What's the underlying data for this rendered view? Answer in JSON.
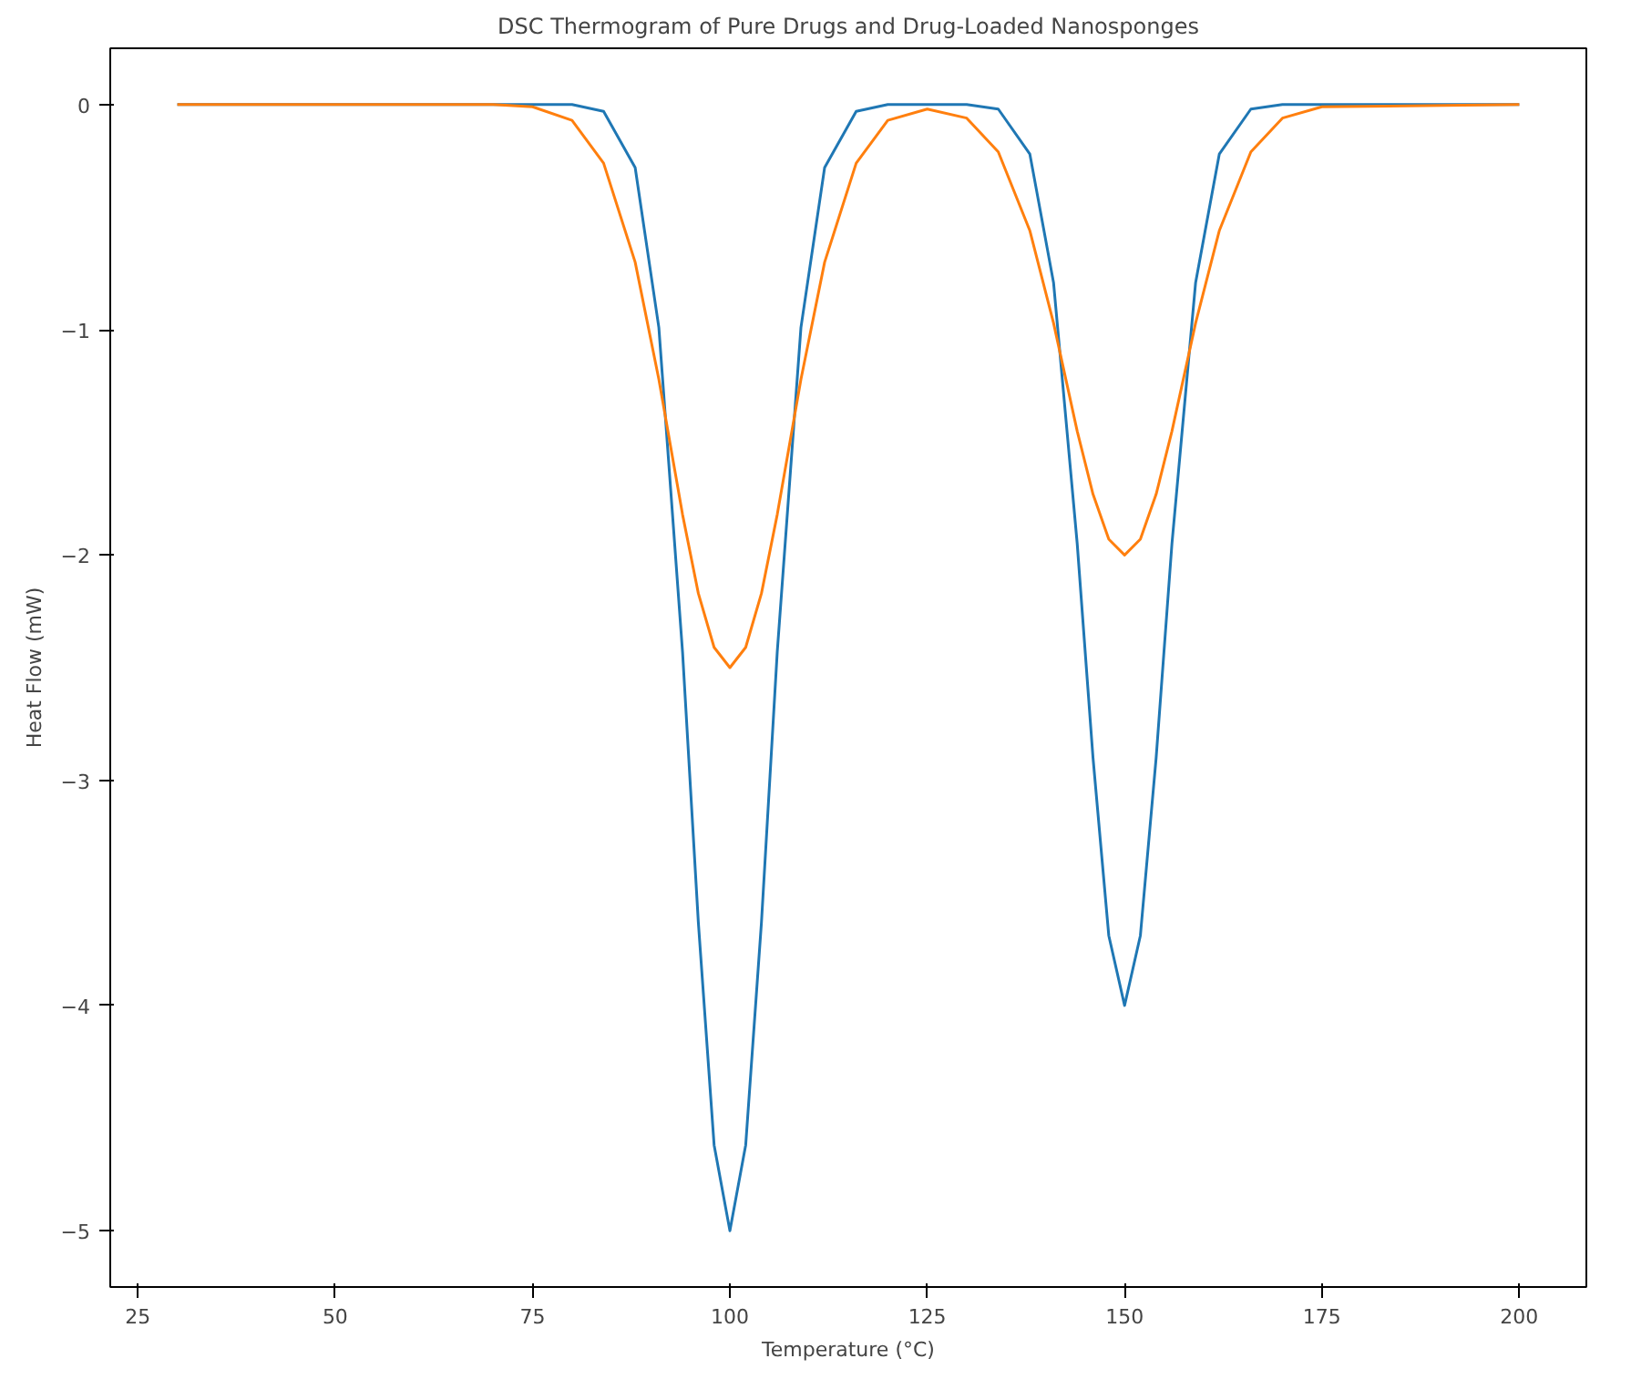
{
  "chart_data": {
    "type": "line",
    "title": "DSC Thermogram of Pure Drugs and Drug-Loaded Nanosponges",
    "xlabel": "Temperature (°C)",
    "ylabel": "Heat Flow (mW)",
    "x": [
      30,
      70,
      75,
      80,
      84,
      88,
      91,
      94,
      96,
      98,
      100,
      102,
      104,
      106,
      109,
      112,
      116,
      120,
      125,
      130,
      134,
      138,
      141,
      144,
      146,
      148,
      150,
      152,
      154,
      156,
      159,
      162,
      166,
      170,
      175,
      200
    ],
    "series": [
      {
        "color": "#1f77b4",
        "values": [
          0,
          0,
          0,
          0,
          -0.03,
          -0.28,
          -0.99,
          -2.43,
          -3.63,
          -4.62,
          -5,
          -4.62,
          -3.63,
          -2.43,
          -0.99,
          -0.28,
          -0.03,
          0,
          0,
          0,
          -0.02,
          -0.22,
          -0.79,
          -1.95,
          -2.9,
          -3.69,
          -4,
          -3.69,
          -2.9,
          -1.95,
          -0.79,
          -0.22,
          -0.02,
          0,
          0,
          0
        ]
      },
      {
        "color": "#ff7f0e",
        "values": [
          0,
          0,
          -0.01,
          -0.07,
          -0.26,
          -0.7,
          -1.22,
          -1.82,
          -2.17,
          -2.41,
          -2.5,
          -2.41,
          -2.17,
          -1.82,
          -1.22,
          -0.7,
          -0.26,
          -0.07,
          -0.02,
          -0.06,
          -0.21,
          -0.56,
          -0.97,
          -1.45,
          -1.73,
          -1.93,
          -2,
          -1.93,
          -1.73,
          -1.45,
          -0.97,
          -0.56,
          -0.21,
          -0.06,
          -0.01,
          0
        ]
      }
    ],
    "xlim": [
      21.5,
      208.5
    ],
    "ylim": [
      -5.25,
      0.25
    ],
    "xticks": [
      25,
      50,
      75,
      100,
      125,
      150,
      175,
      200
    ],
    "yticks": [
      {
        "value": -5,
        "label": "−5"
      },
      {
        "value": -4,
        "label": "−4"
      },
      {
        "value": -3,
        "label": "−3"
      },
      {
        "value": -2,
        "label": "−2"
      },
      {
        "value": -1,
        "label": "−1"
      },
      0
    ],
    "grid": false,
    "marker": "none",
    "line_style": "solid"
  }
}
